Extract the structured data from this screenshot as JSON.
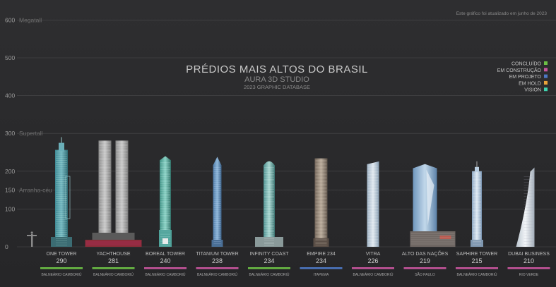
{
  "header": {
    "title": "PRÉDIOS MAIS ALTOS DO BRASIL",
    "studio": "AURA 3D STUDIO",
    "database": "2023 GRAPHIC DATABASE",
    "update_note": "Este gráfico foi atualizado em junho de 2023"
  },
  "colors": {
    "background": "#2b2b2d",
    "grid": "#4a4a4c",
    "concluido": "#6cbf45",
    "em_construcao": "#c8559e",
    "em_projeto": "#4d78c4",
    "em_hold": "#e8a33a",
    "vision": "#3fd4b0"
  },
  "chart_data": {
    "type": "bar",
    "title": "PRÉDIOS MAIS ALTOS DO BRASIL",
    "ylim": [
      0,
      600
    ],
    "y_ticks": [
      0,
      100,
      150,
      200,
      300,
      400,
      500,
      600
    ],
    "grid": true,
    "reference_lines": [
      {
        "value": 150,
        "label": "Arranha-céu"
      },
      {
        "value": 300,
        "label": "Supertall"
      },
      {
        "value": 600,
        "label": "Megatall"
      }
    ],
    "legend_position": "top-right",
    "legend": [
      {
        "label": "CONCLUÍDO",
        "status": "concluido",
        "color": "#6cbf45"
      },
      {
        "label": "EM CONSTRUÇÃO",
        "status": "em_construcao",
        "color": "#c8559e"
      },
      {
        "label": "EM PROJETO",
        "status": "em_projeto",
        "color": "#4d78c4"
      },
      {
        "label": "EM HOLD",
        "status": "em_hold",
        "color": "#e8a33a"
      },
      {
        "label": "VISION",
        "status": "vision",
        "color": "#3fd4b0"
      }
    ],
    "buildings": [
      {
        "name": "ONE TOWER",
        "height": 290,
        "city": "BALNEÁRIO CAMBORIÚ",
        "status": "concluido",
        "style": "one"
      },
      {
        "name": "YACHTHOUSE",
        "height": 281,
        "city": "BALNEÁRIO CAMBORIÚ",
        "status": "concluido",
        "style": "twin"
      },
      {
        "name": "BOREAL TOWER",
        "height": 240,
        "city": "BALNEÁRIO CAMBORIÚ",
        "status": "em_construcao",
        "style": "boreal"
      },
      {
        "name": "TITANIUM TOWER",
        "height": 238,
        "city": "BALNEÁRIO CAMBORIÚ",
        "status": "em_construcao",
        "style": "titanium"
      },
      {
        "name": "INFINITY COAST",
        "height": 234,
        "city": "BALNEÁRIO CAMBORIÚ",
        "status": "concluido",
        "style": "infinity"
      },
      {
        "name": "EMPIRE 234",
        "height": 234,
        "city": "ITAPEMA",
        "status": "em_projeto",
        "style": "empire"
      },
      {
        "name": "VITRA",
        "height": 226,
        "city": "BALNEÁRIO CAMBORIÚ",
        "status": "em_construcao",
        "style": "vitra"
      },
      {
        "name": "ALTO DAS NAÇÕES",
        "height": 219,
        "city": "SÃO PAULO",
        "status": "em_construcao",
        "style": "alto"
      },
      {
        "name": "SAPHIRE TOWER",
        "height": 215,
        "city": "BALNEÁRIO CAMBORIÚ",
        "status": "em_construcao",
        "style": "saphire"
      },
      {
        "name": "DUBAI BUSINESS",
        "height": 210,
        "city": "RIO VERDE",
        "status": "em_construcao",
        "style": "dubai"
      }
    ]
  }
}
